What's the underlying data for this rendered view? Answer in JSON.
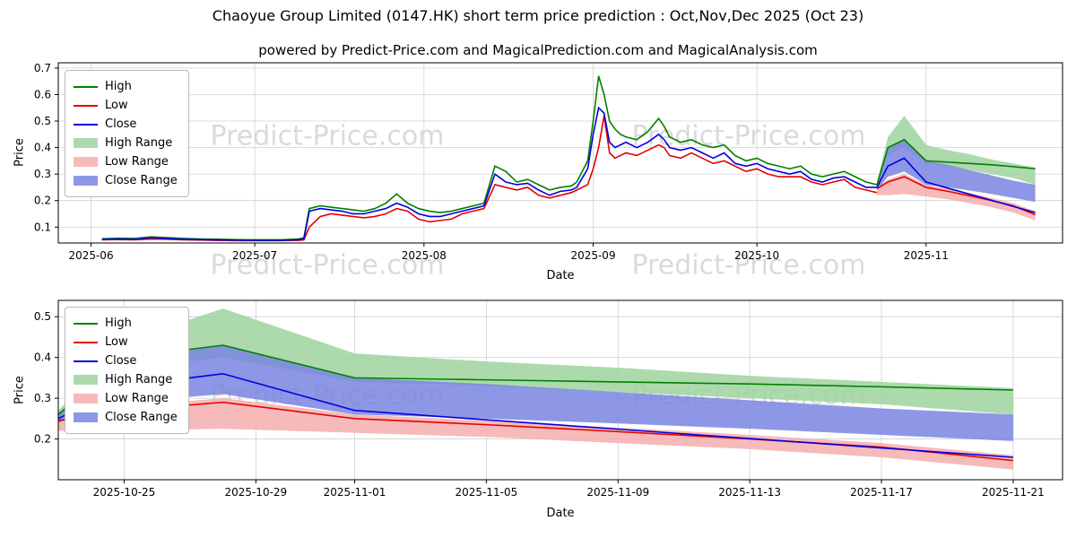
{
  "title": "Chaoyue Group Limited (0147.HK) short term price prediction : Oct,Nov,Dec 2025 (Oct 23)",
  "subtitle": "powered by Predict-Price.com and MagicalPrediction.com and MagicalAnalysis.com",
  "watermark": "Predict-Price.com",
  "colors": {
    "high": "#008000",
    "low": "#e60000",
    "close": "#0000e0",
    "high_range": "#9fd49f",
    "low_range": "#f5aeae",
    "close_range": "#7a85e0",
    "grid": "#d0d0d0",
    "watermark": "#bdbdbd"
  },
  "legend": [
    {
      "label": "High",
      "color": "high",
      "type": "line"
    },
    {
      "label": "Low",
      "color": "low",
      "type": "line"
    },
    {
      "label": "Close",
      "color": "close",
      "type": "line"
    },
    {
      "label": "High Range",
      "color": "high_range",
      "type": "band"
    },
    {
      "label": "Low Range",
      "color": "low_range",
      "type": "band"
    },
    {
      "label": "Close Range",
      "color": "close_range",
      "type": "band"
    }
  ],
  "chart_data": [
    {
      "type": "line",
      "title": "Historical prices Jun-Oct 2025 with prediction fan",
      "xlabel": "Date",
      "ylabel": "Price",
      "x_domain": [
        -6,
        178
      ],
      "y_domain": [
        0.04,
        0.72
      ],
      "x_ticks": [
        {
          "v": 0,
          "label": "2025-06"
        },
        {
          "v": 30,
          "label": "2025-07"
        },
        {
          "v": 61,
          "label": "2025-08"
        },
        {
          "v": 92,
          "label": "2025-09"
        },
        {
          "v": 122,
          "label": "2025-10"
        },
        {
          "v": 153,
          "label": "2025-11"
        }
      ],
      "y_ticks": [
        {
          "v": 0.1,
          "label": "0.1"
        },
        {
          "v": 0.2,
          "label": "0.2"
        },
        {
          "v": 0.3,
          "label": "0.3"
        },
        {
          "v": 0.4,
          "label": "0.4"
        },
        {
          "v": 0.5,
          "label": "0.5"
        },
        {
          "v": 0.6,
          "label": "0.6"
        },
        {
          "v": 0.7,
          "label": "0.7"
        }
      ],
      "bands": [
        {
          "name": "high-range-band",
          "color": "high_range",
          "opacity": 0.85,
          "x": [
            144,
            146,
            149,
            153,
            157,
            161,
            165,
            169,
            173
          ],
          "top": [
            0.27,
            0.44,
            0.52,
            0.41,
            0.39,
            0.375,
            0.355,
            0.34,
            0.325
          ],
          "bottom": [
            0.25,
            0.37,
            0.4,
            0.34,
            0.33,
            0.315,
            0.3,
            0.285,
            0.26
          ]
        },
        {
          "name": "low-range-band",
          "color": "low_range",
          "opacity": 0.85,
          "x": [
            144,
            146,
            149,
            153,
            157,
            161,
            165,
            169,
            173
          ],
          "top": [
            0.25,
            0.28,
            0.3,
            0.26,
            0.245,
            0.228,
            0.21,
            0.19,
            0.16
          ],
          "bottom": [
            0.22,
            0.22,
            0.225,
            0.215,
            0.205,
            0.19,
            0.175,
            0.155,
            0.125
          ]
        },
        {
          "name": "close-range-band",
          "color": "close_range",
          "opacity": 0.85,
          "x": [
            144,
            146,
            149,
            153,
            157,
            161,
            165,
            169,
            173
          ],
          "top": [
            0.26,
            0.4,
            0.43,
            0.35,
            0.335,
            0.315,
            0.295,
            0.275,
            0.26
          ],
          "bottom": [
            0.24,
            0.29,
            0.31,
            0.26,
            0.25,
            0.238,
            0.225,
            0.21,
            0.195
          ]
        }
      ],
      "series": [
        {
          "name": "high-line",
          "color": "high",
          "x": [
            2,
            5,
            8,
            11,
            14,
            17,
            20,
            23,
            26,
            29,
            32,
            35,
            38,
            39,
            40,
            42,
            44,
            46,
            48,
            50,
            52,
            54,
            56,
            58,
            60,
            62,
            64,
            66,
            68,
            70,
            72,
            74,
            76,
            78,
            80,
            82,
            84,
            86,
            88,
            89,
            91,
            92,
            93,
            94,
            95,
            96,
            97,
            98,
            100,
            102,
            104,
            105,
            106,
            108,
            110,
            112,
            114,
            116,
            118,
            120,
            122,
            124,
            126,
            128,
            130,
            132,
            134,
            136,
            138,
            140,
            142,
            144
          ],
          "y": [
            0.056,
            0.058,
            0.057,
            0.063,
            0.06,
            0.057,
            0.055,
            0.054,
            0.053,
            0.052,
            0.052,
            0.052,
            0.055,
            0.06,
            0.17,
            0.18,
            0.175,
            0.17,
            0.165,
            0.16,
            0.17,
            0.19,
            0.225,
            0.19,
            0.17,
            0.16,
            0.155,
            0.16,
            0.17,
            0.18,
            0.19,
            0.33,
            0.31,
            0.27,
            0.28,
            0.26,
            0.24,
            0.25,
            0.255,
            0.27,
            0.35,
            0.5,
            0.67,
            0.6,
            0.5,
            0.47,
            0.45,
            0.44,
            0.43,
            0.46,
            0.51,
            0.48,
            0.44,
            0.42,
            0.43,
            0.41,
            0.4,
            0.41,
            0.37,
            0.35,
            0.36,
            0.34,
            0.33,
            0.32,
            0.33,
            0.3,
            0.29,
            0.3,
            0.31,
            0.29,
            0.27,
            0.26
          ]
        },
        {
          "name": "low-line",
          "color": "low",
          "x": [
            2,
            5,
            8,
            11,
            14,
            17,
            20,
            23,
            26,
            29,
            32,
            35,
            38,
            39,
            40,
            42,
            44,
            46,
            48,
            50,
            52,
            54,
            56,
            58,
            60,
            62,
            64,
            66,
            68,
            70,
            72,
            74,
            76,
            78,
            80,
            82,
            84,
            86,
            88,
            89,
            91,
            92,
            93,
            94,
            95,
            96,
            97,
            98,
            100,
            102,
            104,
            105,
            106,
            108,
            110,
            112,
            114,
            116,
            118,
            120,
            122,
            124,
            126,
            128,
            130,
            132,
            134,
            136,
            138,
            140,
            142,
            144
          ],
          "y": [
            0.052,
            0.053,
            0.052,
            0.055,
            0.054,
            0.052,
            0.051,
            0.05,
            0.049,
            0.049,
            0.049,
            0.049,
            0.05,
            0.052,
            0.1,
            0.14,
            0.15,
            0.145,
            0.14,
            0.135,
            0.14,
            0.15,
            0.17,
            0.16,
            0.13,
            0.12,
            0.125,
            0.13,
            0.15,
            0.16,
            0.17,
            0.26,
            0.25,
            0.24,
            0.25,
            0.22,
            0.21,
            0.22,
            0.23,
            0.24,
            0.26,
            0.32,
            0.4,
            0.52,
            0.38,
            0.36,
            0.37,
            0.38,
            0.37,
            0.39,
            0.41,
            0.4,
            0.37,
            0.36,
            0.38,
            0.36,
            0.34,
            0.35,
            0.33,
            0.31,
            0.32,
            0.3,
            0.29,
            0.29,
            0.29,
            0.27,
            0.26,
            0.27,
            0.28,
            0.25,
            0.24,
            0.23
          ]
        },
        {
          "name": "close-line",
          "color": "close",
          "x": [
            2,
            5,
            8,
            11,
            14,
            17,
            20,
            23,
            26,
            29,
            32,
            35,
            38,
            39,
            40,
            42,
            44,
            46,
            48,
            50,
            52,
            54,
            56,
            58,
            60,
            62,
            64,
            66,
            68,
            70,
            72,
            74,
            76,
            78,
            80,
            82,
            84,
            86,
            88,
            89,
            91,
            92,
            93,
            94,
            95,
            96,
            97,
            98,
            100,
            102,
            104,
            105,
            106,
            108,
            110,
            112,
            114,
            116,
            118,
            120,
            122,
            124,
            126,
            128,
            130,
            132,
            134,
            136,
            138,
            140,
            142,
            144
          ],
          "y": [
            0.054,
            0.055,
            0.054,
            0.06,
            0.057,
            0.054,
            0.053,
            0.052,
            0.051,
            0.05,
            0.05,
            0.05,
            0.053,
            0.055,
            0.16,
            0.17,
            0.165,
            0.16,
            0.15,
            0.15,
            0.16,
            0.17,
            0.19,
            0.175,
            0.15,
            0.14,
            0.14,
            0.15,
            0.16,
            0.17,
            0.18,
            0.3,
            0.27,
            0.26,
            0.265,
            0.24,
            0.22,
            0.235,
            0.24,
            0.25,
            0.32,
            0.45,
            0.55,
            0.53,
            0.42,
            0.4,
            0.41,
            0.42,
            0.4,
            0.42,
            0.45,
            0.43,
            0.4,
            0.39,
            0.4,
            0.38,
            0.36,
            0.38,
            0.34,
            0.33,
            0.34,
            0.32,
            0.31,
            0.3,
            0.31,
            0.28,
            0.27,
            0.285,
            0.29,
            0.27,
            0.25,
            0.25
          ]
        },
        {
          "name": "pred-high-line",
          "color": "high",
          "x": [
            144,
            146,
            149,
            153,
            157,
            161,
            165,
            169,
            173
          ],
          "y": [
            0.26,
            0.4,
            0.43,
            0.35,
            0.345,
            0.34,
            0.335,
            0.328,
            0.32
          ]
        },
        {
          "name": "pred-low-line",
          "color": "low",
          "x": [
            144,
            146,
            149,
            153,
            157,
            161,
            165,
            169,
            173
          ],
          "y": [
            0.245,
            0.27,
            0.29,
            0.25,
            0.235,
            0.218,
            0.2,
            0.18,
            0.147
          ]
        },
        {
          "name": "pred-close-line",
          "color": "close",
          "x": [
            144,
            146,
            149,
            153,
            157,
            161,
            165,
            169,
            173
          ],
          "y": [
            0.25,
            0.33,
            0.36,
            0.27,
            0.247,
            0.224,
            0.201,
            0.178,
            0.155
          ]
        }
      ]
    },
    {
      "type": "line",
      "title": "Prediction detail Oct 23 - Nov 21 2025",
      "xlabel": "Date",
      "ylabel": "Price",
      "x_domain": [
        144,
        174.5
      ],
      "y_domain": [
        0.1,
        0.54
      ],
      "x_ticks": [
        {
          "v": 146,
          "label": "2025-10-25"
        },
        {
          "v": 150,
          "label": "2025-10-29"
        },
        {
          "v": 153,
          "label": "2025-11-01"
        },
        {
          "v": 157,
          "label": "2025-11-05"
        },
        {
          "v": 161,
          "label": "2025-11-09"
        },
        {
          "v": 165,
          "label": "2025-11-13"
        },
        {
          "v": 169,
          "label": "2025-11-17"
        },
        {
          "v": 173,
          "label": "2025-11-21"
        }
      ],
      "y_ticks": [
        {
          "v": 0.2,
          "label": "0.2"
        },
        {
          "v": 0.3,
          "label": "0.3"
        },
        {
          "v": 0.4,
          "label": "0.4"
        },
        {
          "v": 0.5,
          "label": "0.5"
        }
      ],
      "bands": [
        {
          "name": "high-range-band",
          "color": "high_range",
          "opacity": 0.85,
          "x": [
            144,
            146,
            149,
            153,
            157,
            161,
            165,
            169,
            173
          ],
          "top": [
            0.27,
            0.44,
            0.52,
            0.41,
            0.39,
            0.375,
            0.355,
            0.34,
            0.325
          ],
          "bottom": [
            0.25,
            0.37,
            0.4,
            0.34,
            0.33,
            0.315,
            0.3,
            0.285,
            0.26
          ]
        },
        {
          "name": "low-range-band",
          "color": "low_range",
          "opacity": 0.85,
          "x": [
            144,
            146,
            149,
            153,
            157,
            161,
            165,
            169,
            173
          ],
          "top": [
            0.25,
            0.28,
            0.3,
            0.26,
            0.245,
            0.228,
            0.21,
            0.19,
            0.16
          ],
          "bottom": [
            0.22,
            0.22,
            0.225,
            0.215,
            0.205,
            0.19,
            0.175,
            0.155,
            0.125
          ]
        },
        {
          "name": "close-range-band",
          "color": "close_range",
          "opacity": 0.85,
          "x": [
            144,
            146,
            149,
            153,
            157,
            161,
            165,
            169,
            173
          ],
          "top": [
            0.26,
            0.4,
            0.43,
            0.35,
            0.335,
            0.315,
            0.295,
            0.275,
            0.26
          ],
          "bottom": [
            0.24,
            0.29,
            0.31,
            0.26,
            0.25,
            0.238,
            0.225,
            0.21,
            0.195
          ]
        }
      ],
      "series": [
        {
          "name": "pred-high-line",
          "color": "high",
          "x": [
            144,
            146,
            149,
            153,
            157,
            161,
            165,
            169,
            173
          ],
          "y": [
            0.26,
            0.4,
            0.43,
            0.35,
            0.345,
            0.34,
            0.335,
            0.328,
            0.32
          ]
        },
        {
          "name": "pred-low-line",
          "color": "low",
          "x": [
            144,
            146,
            149,
            153,
            157,
            161,
            165,
            169,
            173
          ],
          "y": [
            0.245,
            0.27,
            0.29,
            0.25,
            0.235,
            0.218,
            0.2,
            0.18,
            0.147
          ]
        },
        {
          "name": "pred-close-line",
          "color": "close",
          "x": [
            144,
            146,
            149,
            153,
            157,
            161,
            165,
            169,
            173
          ],
          "y": [
            0.25,
            0.33,
            0.36,
            0.27,
            0.247,
            0.224,
            0.201,
            0.178,
            0.155
          ]
        }
      ]
    }
  ]
}
